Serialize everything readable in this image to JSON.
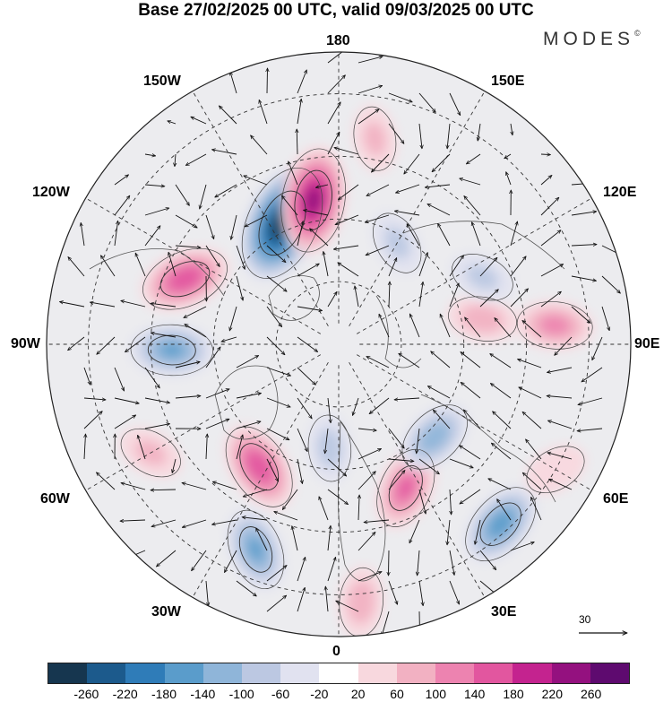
{
  "title": "Base 27/02/2025 00 UTC, valid 09/03/2025 00 UTC",
  "brand": "MODES",
  "brand_mark": "©",
  "longitude_labels": {
    "top": "180",
    "bottom": "0",
    "left": "90W",
    "right": "90E",
    "upper_left_outer": "120W",
    "upper_left_inner": "150W",
    "upper_right_inner": "150E",
    "upper_right_outer": "120E",
    "lower_left_outer": "60W",
    "lower_left_inner": "30W",
    "lower_right_inner": "30E",
    "lower_right_outer": "60E"
  },
  "reference_vector": {
    "value": "30"
  },
  "colorbar": {
    "colors": [
      "#16364f",
      "#1c5a8c",
      "#2f7cb8",
      "#5a9ccb",
      "#8fb5d9",
      "#bcc8e2",
      "#e1e2f0",
      "#ffffff",
      "#f8d8de",
      "#f2b1c2",
      "#ed83b0",
      "#e2569f",
      "#c4238f",
      "#94117f",
      "#5e0a6f"
    ],
    "tick_labels": [
      "-260",
      "-220",
      "-180",
      "-140",
      "-100",
      "-60",
      "-20",
      "20",
      "60",
      "100",
      "140",
      "180",
      "220",
      "260"
    ]
  },
  "anomaly_centers": [
    {
      "lon": -155,
      "lat": 58,
      "value": -300
    },
    {
      "lon": -170,
      "lat": 55,
      "value": 240
    },
    {
      "lon": -113,
      "lat": 50,
      "value": 170
    },
    {
      "lon": -88,
      "lat": 50,
      "value": -140
    },
    {
      "lon": -33,
      "lat": 55,
      "value": 170
    },
    {
      "lon": -22,
      "lat": 37,
      "value": -140
    },
    {
      "lon": 25,
      "lat": 52,
      "value": 140
    },
    {
      "lon": 46,
      "lat": 58,
      "value": -120
    },
    {
      "lon": 42,
      "lat": 32,
      "value": -160
    },
    {
      "lon": 95,
      "lat": 38,
      "value": 110
    },
    {
      "lon": 100,
      "lat": 55,
      "value": 80
    },
    {
      "lon": 115,
      "lat": 52,
      "value": -60
    },
    {
      "lon": 150,
      "lat": 62,
      "value": -60
    },
    {
      "lon": -5,
      "lat": 65,
      "value": -70
    },
    {
      "lon": 5,
      "lat": 28,
      "value": 80
    },
    {
      "lon": 170,
      "lat": 40,
      "value": 60
    },
    {
      "lon": -60,
      "lat": 38,
      "value": 60
    },
    {
      "lon": 60,
      "lat": 30,
      "value": 50
    }
  ]
}
